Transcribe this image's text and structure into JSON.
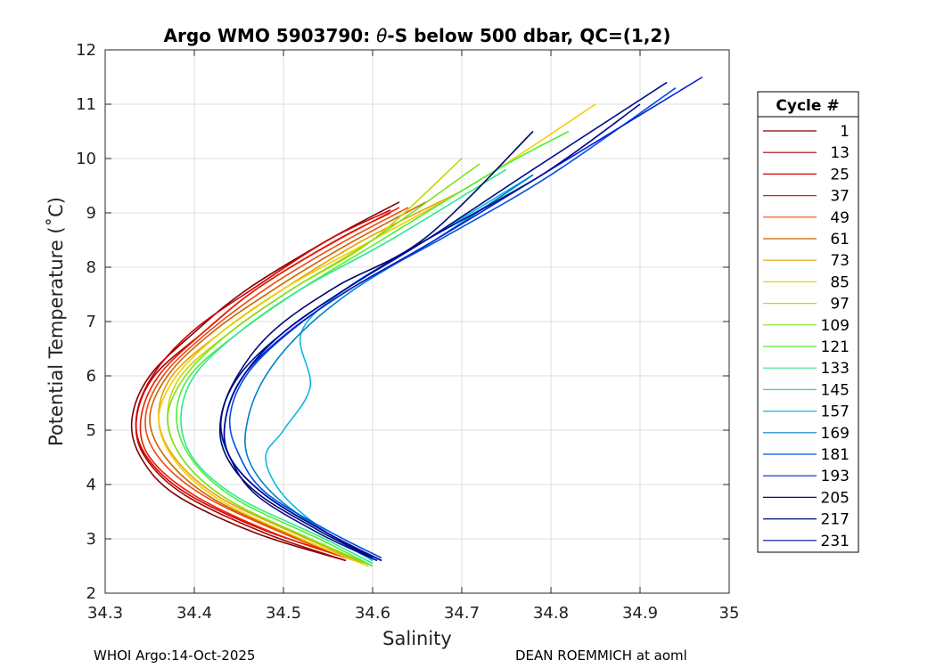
{
  "chart_data": {
    "type": "line",
    "title": "Argo WMO 5903790: θ-S below 500 dbar,  QC=(1,2)",
    "title_prefix": "Argo WMO 5903790: ",
    "title_theta": "θ",
    "title_suffix": "-S below 500 dbar,  QC=(1,2)",
    "xlabel": "Salinity",
    "ylabel": "Potential Temperature (˚C)",
    "xlim": [
      34.3,
      35
    ],
    "ylim": [
      2,
      12
    ],
    "xticks": [
      "34.3",
      "34.4",
      "34.5",
      "34.6",
      "34.7",
      "34.8",
      "34.9",
      "35"
    ],
    "yticks": [
      "2",
      "3",
      "4",
      "5",
      "6",
      "7",
      "8",
      "9",
      "10",
      "11",
      "12"
    ],
    "grid": true,
    "legend": {
      "title": "Cycle #",
      "position": "right-outside",
      "entries": [
        {
          "label": "1",
          "color": "#800000"
        },
        {
          "label": "13",
          "color": "#a80000"
        },
        {
          "label": "25",
          "color": "#d40000"
        },
        {
          "label": "37",
          "color": "#e82000"
        },
        {
          "label": "49",
          "color": "#ee4a10"
        },
        {
          "label": "61",
          "color": "#d06400"
        },
        {
          "label": "73",
          "color": "#e8a000"
        },
        {
          "label": "85",
          "color": "#f0d000"
        },
        {
          "label": "97",
          "color": "#c8d800"
        },
        {
          "label": "109",
          "color": "#80e020"
        },
        {
          "label": "121",
          "color": "#50f030"
        },
        {
          "label": "133",
          "color": "#30e890"
        },
        {
          "label": "145",
          "color": "#20d8c8"
        },
        {
          "label": "157",
          "color": "#10b8e0"
        },
        {
          "label": "169",
          "color": "#0080c8"
        },
        {
          "label": "181",
          "color": "#0050e0"
        },
        {
          "label": "193",
          "color": "#0020d0"
        },
        {
          "label": "205",
          "color": "#001090"
        },
        {
          "label": "217",
          "color": "#000870"
        },
        {
          "label": "231",
          "color": "#000898"
        }
      ]
    },
    "series": [
      {
        "name": "1",
        "color": "#800000",
        "x": [
          34.57,
          34.47,
          34.38,
          34.34,
          34.33,
          34.35,
          34.4,
          34.46,
          34.55,
          34.63
        ],
        "y": [
          2.6,
          3.1,
          3.8,
          4.5,
          5.2,
          6.0,
          6.8,
          7.6,
          8.5,
          9.2
        ]
      },
      {
        "name": "13",
        "color": "#a80000",
        "x": [
          34.57,
          34.48,
          34.39,
          34.345,
          34.335,
          34.355,
          34.41,
          34.47,
          34.56,
          34.62
        ],
        "y": [
          2.6,
          3.1,
          3.8,
          4.5,
          5.2,
          6.0,
          6.8,
          7.6,
          8.5,
          9.0
        ]
      },
      {
        "name": "25",
        "color": "#d40000",
        "x": [
          34.575,
          34.48,
          34.39,
          34.345,
          34.335,
          34.355,
          34.4,
          34.47,
          34.55,
          34.62
        ],
        "y": [
          2.65,
          3.15,
          3.85,
          4.55,
          5.25,
          6.05,
          6.85,
          7.65,
          8.5,
          9.05
        ]
      },
      {
        "name": "37",
        "color": "#e82000",
        "x": [
          34.58,
          34.49,
          34.4,
          34.35,
          34.34,
          34.36,
          34.41,
          34.47,
          34.55,
          34.63
        ],
        "y": [
          2.6,
          3.1,
          3.8,
          4.5,
          5.2,
          6.0,
          6.8,
          7.6,
          8.4,
          9.1
        ]
      },
      {
        "name": "49",
        "color": "#ee4a10",
        "x": [
          34.58,
          34.5,
          34.41,
          34.36,
          34.345,
          34.365,
          34.415,
          34.48,
          34.56,
          34.64
        ],
        "y": [
          2.6,
          3.1,
          3.8,
          4.5,
          5.2,
          6.0,
          6.8,
          7.6,
          8.4,
          9.1
        ]
      },
      {
        "name": "61",
        "color": "#d06400",
        "x": [
          34.59,
          34.51,
          34.42,
          34.37,
          34.35,
          34.37,
          34.42,
          34.49,
          34.57,
          34.66
        ],
        "y": [
          2.55,
          3.05,
          3.75,
          4.45,
          5.2,
          6.0,
          6.8,
          7.6,
          8.4,
          9.2
        ]
      },
      {
        "name": "73",
        "color": "#e8a000",
        "x": [
          34.59,
          34.52,
          34.43,
          34.38,
          34.36,
          34.375,
          34.43,
          34.5,
          34.59,
          34.7
        ],
        "y": [
          2.55,
          3.05,
          3.75,
          4.45,
          5.2,
          6.0,
          6.8,
          7.6,
          8.5,
          9.4
        ]
      },
      {
        "name": "85",
        "color": "#f0d000",
        "x": [
          34.595,
          34.52,
          34.43,
          34.38,
          34.36,
          34.38,
          34.43,
          34.5,
          34.6,
          34.72,
          34.85
        ],
        "y": [
          2.5,
          3.0,
          3.7,
          4.4,
          5.2,
          6.0,
          6.8,
          7.6,
          8.5,
          9.6,
          11.0
        ]
      },
      {
        "name": "97",
        "color": "#c8d800",
        "x": [
          34.6,
          34.53,
          34.44,
          34.39,
          34.37,
          34.385,
          34.44,
          34.51,
          34.6,
          34.7
        ],
        "y": [
          2.5,
          3.0,
          3.7,
          4.4,
          5.2,
          6.0,
          6.8,
          7.6,
          8.5,
          10.0
        ]
      },
      {
        "name": "109",
        "color": "#80e020",
        "x": [
          34.6,
          34.53,
          34.44,
          34.39,
          34.37,
          34.39,
          34.44,
          34.51,
          34.6,
          34.72
        ],
        "y": [
          2.5,
          3.0,
          3.7,
          4.4,
          5.2,
          6.0,
          6.8,
          7.6,
          8.5,
          9.9
        ]
      },
      {
        "name": "121",
        "color": "#50f030",
        "x": [
          34.6,
          34.54,
          34.45,
          34.4,
          34.38,
          34.395,
          34.45,
          34.52,
          34.61,
          34.74,
          34.82
        ],
        "y": [
          2.5,
          3.0,
          3.7,
          4.4,
          5.2,
          6.0,
          6.8,
          7.6,
          8.5,
          9.8,
          10.5
        ]
      },
      {
        "name": "133",
        "color": "#30e890",
        "x": [
          34.6,
          34.54,
          34.45,
          34.4,
          34.385,
          34.4,
          34.45,
          34.52,
          34.62,
          34.75
        ],
        "y": [
          2.55,
          3.05,
          3.75,
          4.45,
          5.2,
          6.0,
          6.8,
          7.6,
          8.5,
          9.8
        ]
      },
      {
        "name": "145",
        "color": "#20d8c8",
        "x": [
          34.6,
          34.55,
          34.48,
          34.44,
          34.43,
          34.45,
          34.5,
          34.57,
          34.66,
          34.78
        ],
        "y": [
          2.6,
          3.1,
          3.8,
          4.5,
          5.2,
          6.0,
          6.8,
          7.6,
          8.5,
          9.6
        ]
      },
      {
        "name": "157",
        "color": "#10b8e0",
        "x": [
          34.6,
          34.55,
          34.5,
          34.48,
          34.5,
          34.53,
          34.52,
          34.57,
          34.66,
          34.78
        ],
        "y": [
          2.6,
          3.1,
          3.8,
          4.5,
          5.0,
          5.8,
          6.8,
          7.6,
          8.5,
          9.7
        ]
      },
      {
        "name": "169",
        "color": "#0080c8",
        "x": [
          34.61,
          34.55,
          34.49,
          34.46,
          34.46,
          34.48,
          34.52,
          34.58,
          34.67,
          34.78
        ],
        "y": [
          2.6,
          3.1,
          3.8,
          4.5,
          5.2,
          6.0,
          6.8,
          7.6,
          8.5,
          9.7
        ]
      },
      {
        "name": "181",
        "color": "#0050e0",
        "x": [
          34.61,
          34.55,
          34.48,
          34.45,
          34.44,
          34.46,
          34.51,
          34.58,
          34.68,
          34.8,
          34.94
        ],
        "y": [
          2.65,
          3.15,
          3.85,
          4.55,
          5.25,
          6.05,
          6.85,
          7.65,
          8.55,
          9.7,
          11.3
        ]
      },
      {
        "name": "193",
        "color": "#0020d0",
        "x": [
          34.61,
          34.55,
          34.48,
          34.44,
          34.435,
          34.455,
          34.505,
          34.575,
          34.67,
          34.79,
          34.97
        ],
        "y": [
          2.6,
          3.1,
          3.8,
          4.5,
          5.2,
          6.0,
          6.8,
          7.6,
          8.5,
          9.7,
          11.5
        ]
      },
      {
        "name": "205",
        "color": "#001090",
        "x": [
          34.605,
          34.54,
          34.47,
          34.44,
          34.43,
          34.45,
          34.5,
          34.57,
          34.66,
          34.78,
          34.93
        ],
        "y": [
          2.6,
          3.1,
          3.8,
          4.5,
          5.2,
          6.0,
          6.8,
          7.6,
          8.5,
          9.8,
          11.4
        ]
      },
      {
        "name": "217",
        "color": "#000870",
        "x": [
          34.6,
          34.54,
          34.47,
          34.435,
          34.43,
          34.45,
          34.49,
          34.56,
          34.66,
          34.78
        ],
        "y": [
          2.65,
          3.15,
          3.85,
          4.55,
          5.25,
          6.05,
          6.85,
          7.65,
          8.55,
          10.5
        ]
      },
      {
        "name": "231",
        "color": "#000898",
        "x": [
          34.61,
          34.55,
          34.48,
          34.44,
          34.435,
          34.455,
          34.5,
          34.57,
          34.66,
          34.79,
          34.9
        ],
        "y": [
          2.6,
          3.1,
          3.8,
          4.5,
          5.2,
          6.0,
          6.8,
          7.6,
          8.5,
          9.7,
          11.0
        ]
      }
    ]
  },
  "footer": {
    "left": "WHOI Argo:14-Oct-2025",
    "right": "DEAN ROEMMICH at aoml"
  }
}
